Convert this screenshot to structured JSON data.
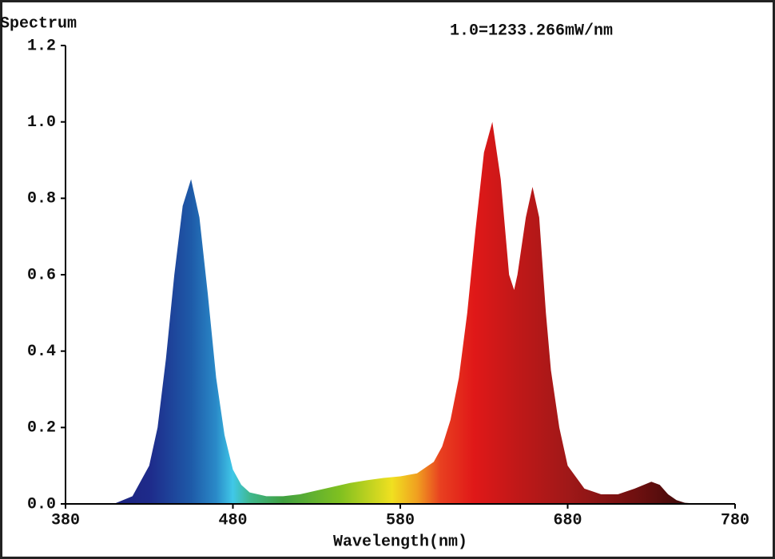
{
  "chart_data": {
    "type": "area",
    "y_label": "Spectrum",
    "x_label": "Wavelength(nm)",
    "annotation": "1.0=1233.266mW/nm",
    "x": [
      380,
      390,
      400,
      410,
      420,
      430,
      435,
      440,
      445,
      450,
      455,
      460,
      465,
      470,
      475,
      480,
      485,
      490,
      500,
      510,
      520,
      530,
      540,
      550,
      560,
      570,
      580,
      590,
      600,
      605,
      610,
      615,
      620,
      625,
      630,
      635,
      640,
      645,
      648,
      650,
      655,
      659,
      663,
      667,
      670,
      675,
      680,
      690,
      700,
      710,
      720,
      730,
      735,
      740,
      745,
      750,
      760,
      780
    ],
    "values": [
      0,
      0,
      0,
      0.002,
      0.02,
      0.1,
      0.2,
      0.38,
      0.6,
      0.78,
      0.85,
      0.75,
      0.55,
      0.33,
      0.18,
      0.09,
      0.05,
      0.03,
      0.02,
      0.02,
      0.025,
      0.035,
      0.045,
      0.055,
      0.062,
      0.068,
      0.072,
      0.08,
      0.11,
      0.15,
      0.22,
      0.33,
      0.5,
      0.72,
      0.92,
      1.0,
      0.85,
      0.6,
      0.56,
      0.6,
      0.75,
      0.83,
      0.75,
      0.5,
      0.35,
      0.2,
      0.1,
      0.04,
      0.025,
      0.025,
      0.04,
      0.058,
      0.05,
      0.025,
      0.01,
      0.003,
      0,
      0
    ],
    "xlim": [
      380,
      780
    ],
    "ylim": [
      0,
      1.2
    ],
    "xticks": [
      380,
      480,
      580,
      680,
      780
    ],
    "yticks": [
      {
        "value": 0,
        "label": "0.0"
      },
      0.2,
      0.4,
      0.6,
      0.8,
      {
        "value": 1,
        "label": "1.0"
      },
      1.2
    ]
  }
}
